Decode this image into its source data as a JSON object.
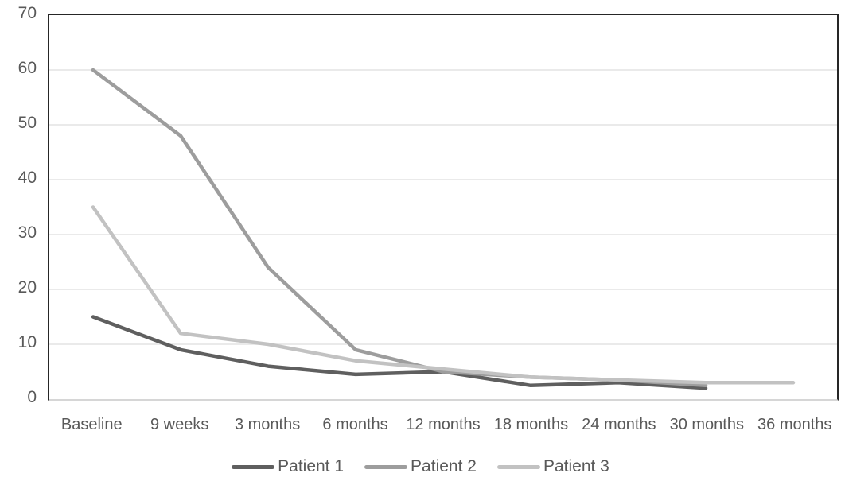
{
  "chart_data": {
    "type": "line",
    "title": "",
    "xlabel": "",
    "ylabel": "",
    "categories": [
      "Baseline",
      "9 weeks",
      "3 months",
      "6 months",
      "12 months",
      "18 months",
      "24 months",
      "30 months",
      "36 months"
    ],
    "series": [
      {
        "name": "Patient 1",
        "color": "#5f5f5f",
        "values": [
          15,
          9,
          6,
          4.5,
          5,
          2.5,
          3,
          2,
          null
        ]
      },
      {
        "name": "Patient 2",
        "color": "#9d9d9d",
        "values": [
          60,
          48,
          24,
          9,
          5,
          4,
          3.5,
          2.5,
          null
        ]
      },
      {
        "name": "Patient 3",
        "color": "#c2c2c2",
        "values": [
          35,
          12,
          10,
          7,
          5.5,
          4,
          3.5,
          3,
          3
        ]
      }
    ],
    "ylim": [
      0,
      70
    ],
    "yticks": [
      0,
      10,
      20,
      30,
      40,
      50,
      60,
      70
    ],
    "grid": "horizontal",
    "legend_position": "bottom",
    "colors": {
      "axis_border": "#262626",
      "bottom_axis": "#d6d6d6",
      "gridline": "#e4e4e4",
      "tick_text": "#595959",
      "background": "#ffffff"
    }
  }
}
